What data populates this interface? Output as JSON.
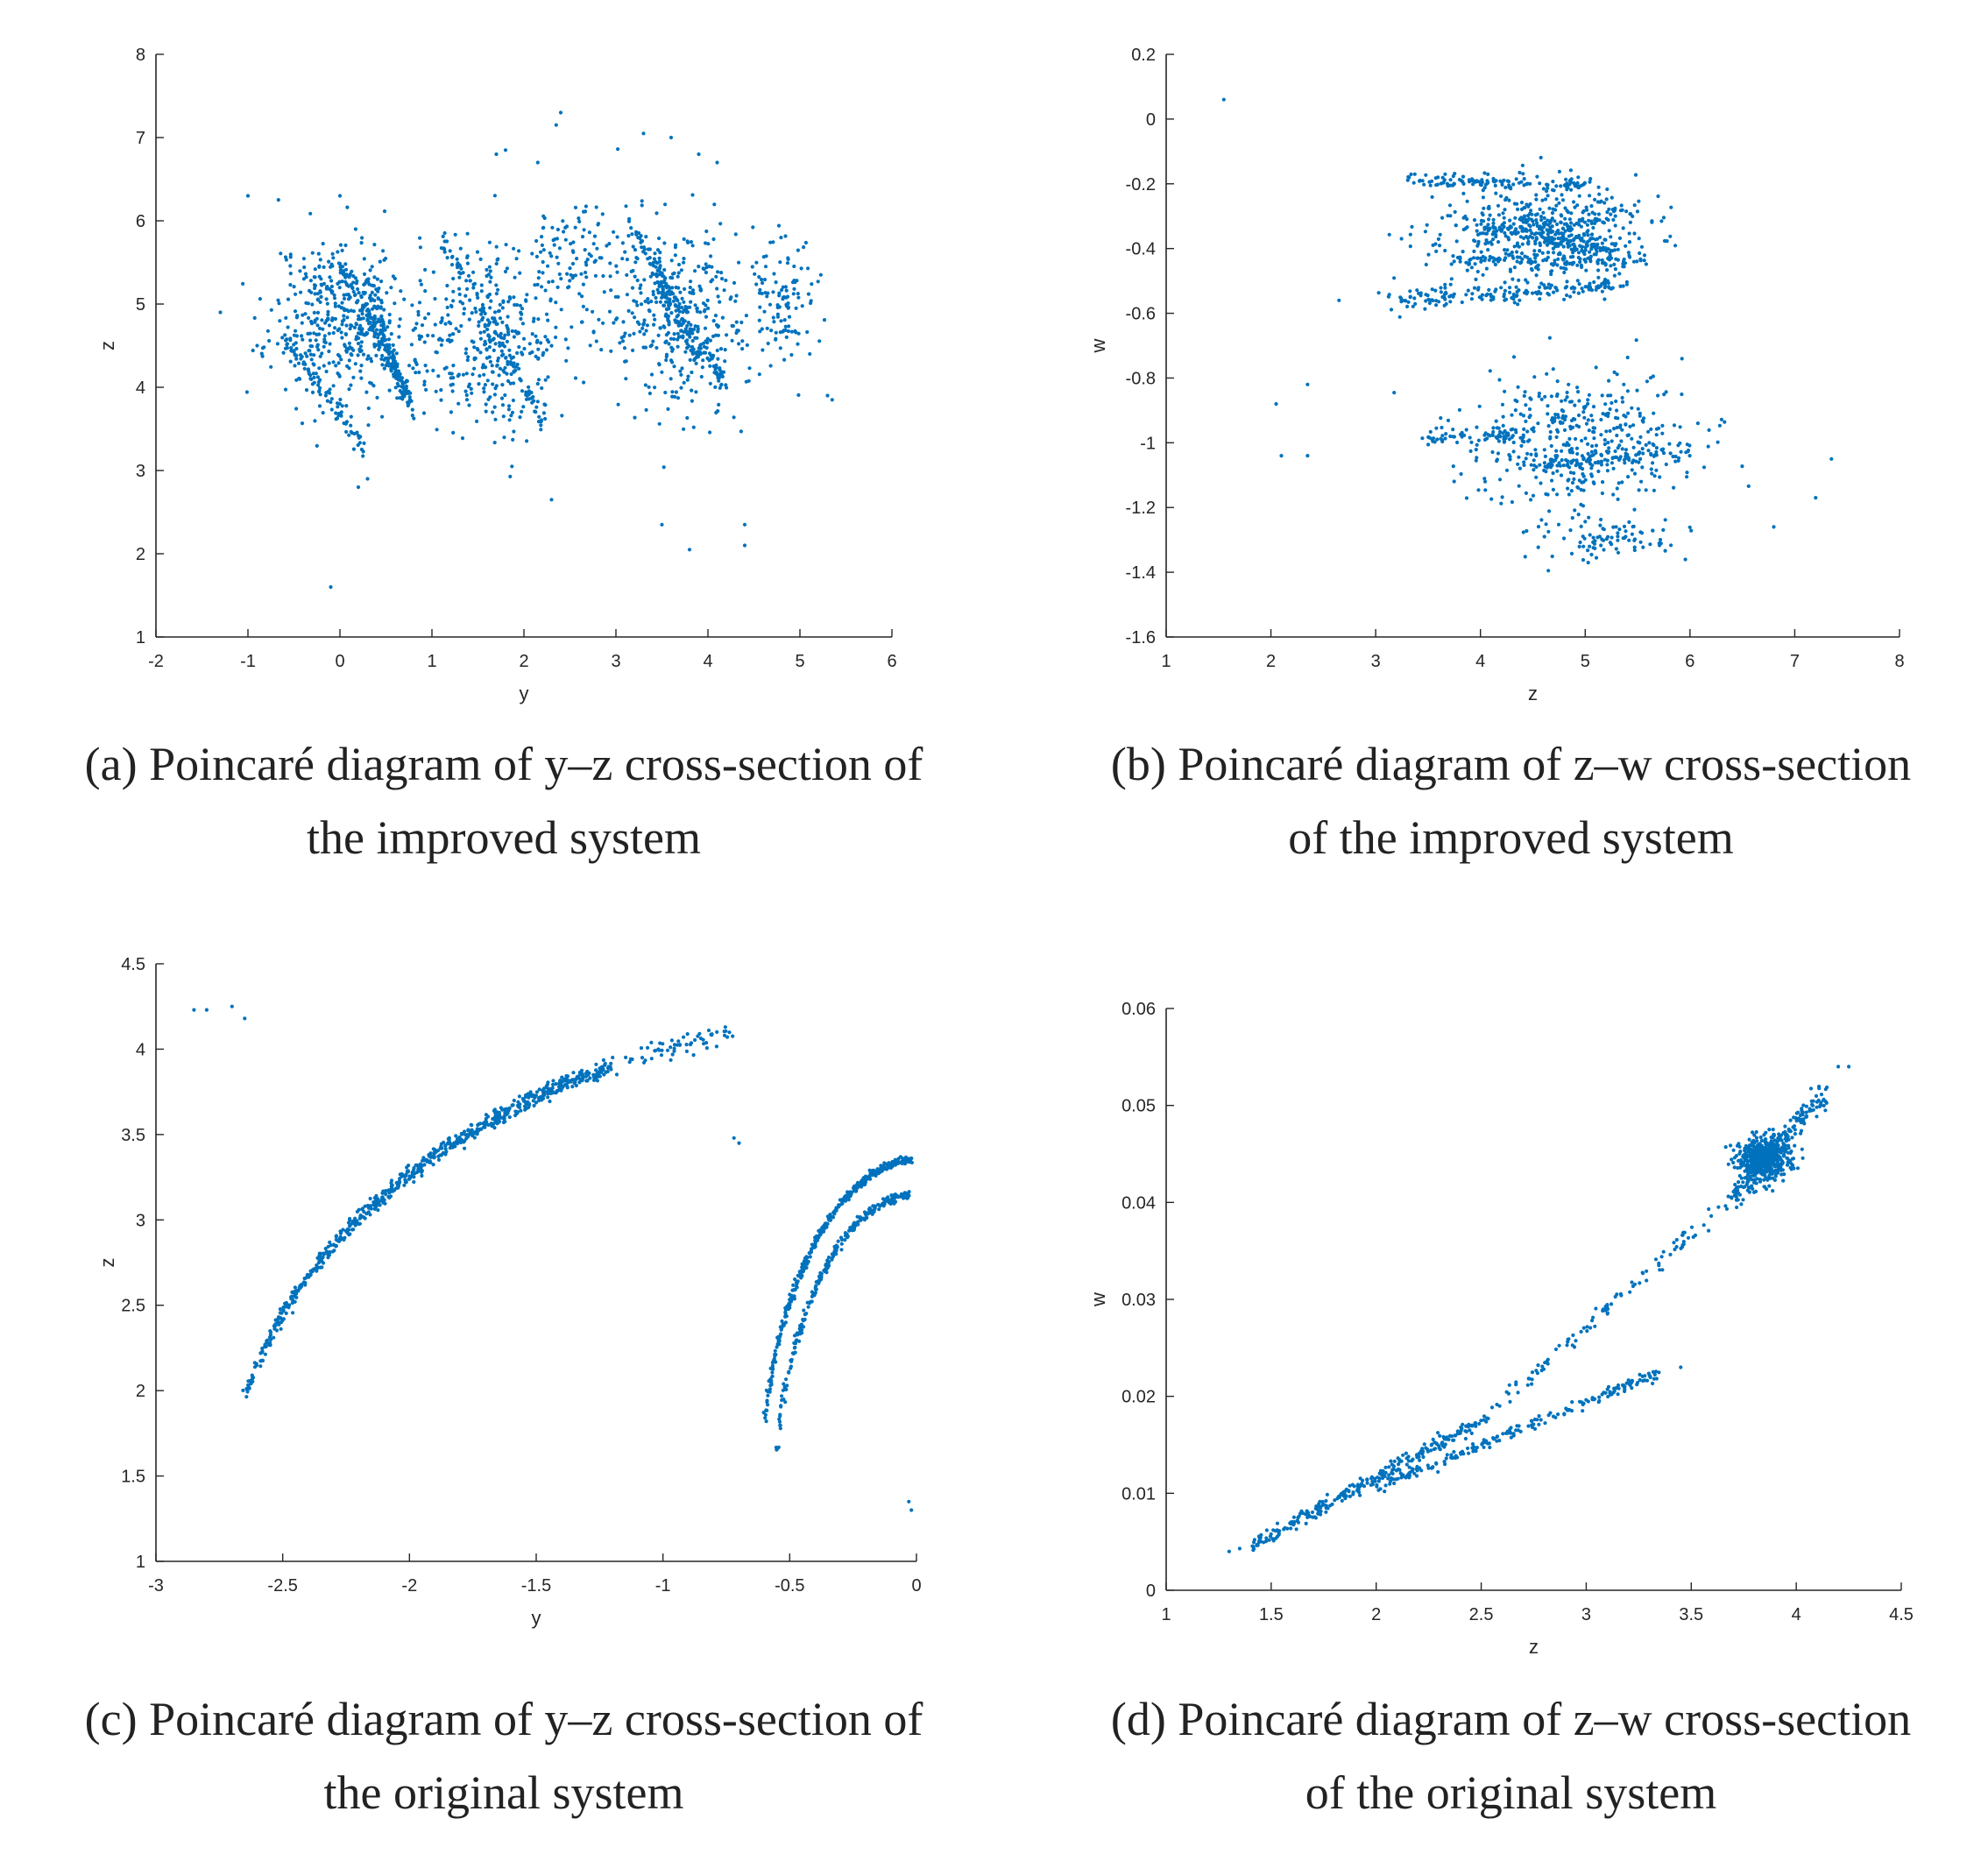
{
  "marker_color": "#0072BD",
  "axis_color": "#262626",
  "chart_data": [
    {
      "id": "a",
      "type": "scatter",
      "caption_lines": [
        "(a)  Poincaré diagram of y–z cross-section of",
        "the improved system"
      ],
      "xlabel": "y",
      "ylabel": "z",
      "xlim": [
        -2,
        6
      ],
      "ylim": [
        1,
        8
      ],
      "xticks": [
        -2,
        -1,
        0,
        1,
        2,
        3,
        4,
        5,
        6
      ],
      "yticks": [
        1,
        2,
        3,
        4,
        5,
        6,
        7,
        8
      ],
      "xtick_labels": [
        "-2",
        "-1",
        "0",
        "1",
        "2",
        "3",
        "4",
        "5",
        "6"
      ],
      "ytick_labels": [
        "1",
        "2",
        "3",
        "4",
        "5",
        "6",
        "7",
        "8"
      ],
      "grid": false,
      "points": [
        [
          -0.1,
          1.6
        ],
        [
          2.4,
          7.3
        ],
        [
          2.35,
          7.15
        ],
        [
          3.8,
          2.05
        ],
        [
          4.4,
          2.1
        ],
        [
          4.4,
          2.35
        ],
        [
          3.5,
          2.35
        ],
        [
          -1.3,
          4.9
        ],
        [
          -1.0,
          6.3
        ],
        [
          5.3,
          3.9
        ],
        [
          5.35,
          3.85
        ],
        [
          0.2,
          2.8
        ],
        [
          0.3,
          2.9
        ],
        [
          1.8,
          6.85
        ],
        [
          1.7,
          6.8
        ],
        [
          3.3,
          7.05
        ],
        [
          3.6,
          7.0
        ],
        [
          3.9,
          6.8
        ],
        [
          4.1,
          6.7
        ],
        [
          2.3,
          2.65
        ],
        [
          2.15,
          6.7
        ],
        [
          0.0,
          6.3
        ],
        [
          -0.9,
          4.5
        ]
      ],
      "clusters": [
        {
          "cx": 0.0,
          "cy": 4.8,
          "sx": 0.75,
          "sy": 1.0,
          "n": 420
        },
        {
          "cx": 1.6,
          "cy": 4.6,
          "sx": 0.75,
          "sy": 1.1,
          "n": 380
        },
        {
          "cx": 3.7,
          "cy": 4.8,
          "sx": 0.85,
          "sy": 1.1,
          "n": 380
        },
        {
          "cx": 2.6,
          "cy": 5.6,
          "sx": 0.5,
          "sy": 0.6,
          "n": 100
        },
        {
          "cx": 4.8,
          "cy": 5.0,
          "sx": 0.35,
          "sy": 0.8,
          "n": 110
        }
      ],
      "arcs": [
        {
          "x0": 0.0,
          "y0": 5.5,
          "x1": 0.8,
          "y1": 3.8,
          "n": 140,
          "w": 0.06
        },
        {
          "x0": 0.3,
          "y0": 5.3,
          "x1": 0.7,
          "y1": 3.8,
          "n": 90,
          "w": 0.06
        },
        {
          "x0": -0.6,
          "y0": 4.6,
          "x1": 0.3,
          "y1": 3.2,
          "n": 80,
          "w": 0.06
        },
        {
          "x0": 1.1,
          "y0": 5.8,
          "x1": 2.2,
          "y1": 3.6,
          "n": 90,
          "w": 0.07
        },
        {
          "x0": 3.2,
          "y0": 5.9,
          "x1": 4.2,
          "y1": 4.0,
          "n": 110,
          "w": 0.07
        },
        {
          "x0": 3.4,
          "y0": 5.4,
          "x1": 3.9,
          "y1": 4.3,
          "n": 60,
          "w": 0.05
        }
      ],
      "seed": 11
    },
    {
      "id": "b",
      "type": "scatter",
      "caption_lines": [
        "(b)  Poincaré diagram of z–w cross-section",
        "of the improved system"
      ],
      "xlabel": "z",
      "ylabel": "w",
      "xlim": [
        1,
        8
      ],
      "ylim": [
        -1.6,
        0.2
      ],
      "xticks": [
        1,
        2,
        3,
        4,
        5,
        6,
        7,
        8
      ],
      "yticks": [
        -1.6,
        -1.4,
        -1.2,
        -1,
        -0.8,
        -0.6,
        -0.4,
        -0.2,
        0,
        0.2
      ],
      "xtick_labels": [
        "1",
        "2",
        "3",
        "4",
        "5",
        "6",
        "7",
        "8"
      ],
      "ytick_labels": [
        "-1.6",
        "-1.4",
        "-1.2",
        "-1",
        "-0.8",
        "-0.6",
        "-0.4",
        "-0.2",
        "0",
        "0.2"
      ],
      "grid": false,
      "points": [
        [
          1.55,
          0.06
        ],
        [
          2.05,
          -0.88
        ],
        [
          2.1,
          -1.04
        ],
        [
          2.35,
          -0.82
        ],
        [
          2.35,
          -1.04
        ],
        [
          2.65,
          -0.56
        ],
        [
          7.35,
          -1.05
        ],
        [
          7.2,
          -1.17
        ],
        [
          6.8,
          -1.26
        ]
      ],
      "clusters": [
        {
          "cx": 4.6,
          "cy": -0.35,
          "sx": 1.0,
          "sy": 0.15,
          "n": 480
        },
        {
          "cx": 4.9,
          "cy": -1.0,
          "sx": 1.1,
          "sy": 0.2,
          "n": 430
        },
        {
          "cx": 5.3,
          "cy": -1.3,
          "sx": 0.7,
          "sy": 0.07,
          "n": 90
        },
        {
          "cx": 3.6,
          "cy": -0.55,
          "sx": 0.5,
          "sy": 0.05,
          "n": 70
        }
      ],
      "arcs": [
        {
          "x0": 3.3,
          "y0": -0.19,
          "x1": 5.0,
          "y1": -0.2,
          "n": 120,
          "w": 0.012
        },
        {
          "x0": 4.0,
          "y0": -0.33,
          "x1": 5.3,
          "y1": -0.4,
          "n": 140,
          "w": 0.012
        },
        {
          "x0": 3.7,
          "y0": -0.44,
          "x1": 5.6,
          "y1": -0.44,
          "n": 100,
          "w": 0.012
        },
        {
          "x0": 4.0,
          "y0": -0.55,
          "x1": 5.4,
          "y1": -0.51,
          "n": 100,
          "w": 0.012
        },
        {
          "x0": 3.5,
          "y0": -0.98,
          "x1": 4.5,
          "y1": -0.98,
          "n": 60,
          "w": 0.012
        },
        {
          "x0": 4.5,
          "y0": -1.07,
          "x1": 6.0,
          "y1": -1.02,
          "n": 80,
          "w": 0.012
        }
      ],
      "seed": 23
    },
    {
      "id": "c",
      "type": "scatter",
      "caption_lines": [
        "(c) Poincaré diagram of y–z cross-section of",
        "the original system"
      ],
      "xlabel": "y",
      "ylabel": "z",
      "xlim": [
        -3,
        0
      ],
      "ylim": [
        1,
        4.5
      ],
      "xticks": [
        -3,
        -2.5,
        -2,
        -1.5,
        -1,
        -0.5,
        0
      ],
      "yticks": [
        1,
        1.5,
        2,
        2.5,
        3,
        3.5,
        4,
        4.5
      ],
      "xtick_labels": [
        "-3",
        "-2.5",
        "-2",
        "-1.5",
        "-1",
        "-0.5",
        "0"
      ],
      "ytick_labels": [
        "1",
        "1.5",
        "2",
        "2.5",
        "3",
        "3.5",
        "4",
        "4.5"
      ],
      "grid": false,
      "points": [
        [
          -2.85,
          4.23
        ],
        [
          -2.8,
          4.23
        ],
        [
          -2.7,
          4.25
        ],
        [
          -2.65,
          4.18
        ],
        [
          -0.7,
          3.45
        ],
        [
          -0.72,
          3.48
        ],
        [
          -0.03,
          1.35
        ],
        [
          -0.02,
          1.3
        ]
      ],
      "clusters": [],
      "arcs": [],
      "curves": [
        {
          "kind": "ellipse",
          "a": 2.72,
          "b": 2.9,
          "cy": 1.3,
          "t0": -2.65,
          "t1": -1.2,
          "n": 700,
          "w": 0.025
        },
        {
          "kind": "ellipse",
          "a": 2.72,
          "b": 2.9,
          "cy": 1.3,
          "t0": -1.2,
          "t1": -0.72,
          "n": 60,
          "w": 0.03
        },
        {
          "kind": "ellipse",
          "a": 0.62,
          "b": 2.05,
          "cy": 1.3,
          "t0": -0.6,
          "t1": -0.02,
          "n": 420,
          "w": 0.012
        },
        {
          "kind": "ellipse",
          "a": 0.56,
          "b": 1.85,
          "cy": 1.3,
          "t0": -0.55,
          "t1": -0.03,
          "n": 260,
          "w": 0.012
        }
      ],
      "seed": 37
    },
    {
      "id": "d",
      "type": "scatter",
      "caption_lines": [
        "(d) Poincaré diagram of z–w cross-section",
        "of the original system"
      ],
      "xlabel": "z",
      "ylabel": "w",
      "xlim": [
        1,
        4.5
      ],
      "ylim": [
        0,
        0.06
      ],
      "xticks": [
        1,
        1.5,
        2,
        2.5,
        3,
        3.5,
        4,
        4.5
      ],
      "yticks": [
        0,
        0.01,
        0.02,
        0.03,
        0.04,
        0.05,
        0.06
      ],
      "xtick_labels": [
        "1",
        "1.5",
        "2",
        "2.5",
        "3",
        "3.5",
        "4",
        "4.5"
      ],
      "ytick_labels": [
        "0",
        "0.01",
        "0.02",
        "0.03",
        "0.04",
        "0.05",
        "0.06"
      ],
      "grid": false,
      "points": [
        [
          1.3,
          0.004
        ],
        [
          1.35,
          0.0043
        ],
        [
          4.2,
          0.054
        ],
        [
          4.25,
          0.054
        ],
        [
          3.45,
          0.023
        ]
      ],
      "clusters": [
        {
          "cx": 3.85,
          "cy": 0.0445,
          "sx": 0.13,
          "sy": 0.0022,
          "n": 520
        }
      ],
      "arcs": [
        {
          "x0": 1.4,
          "y0": 0.0045,
          "x1": 2.5,
          "y1": 0.0175,
          "n": 260,
          "w": 0.0004
        },
        {
          "x0": 2.5,
          "y0": 0.0175,
          "x1": 3.7,
          "y1": 0.0405,
          "n": 110,
          "w": 0.0005
        },
        {
          "x0": 3.7,
          "y0": 0.0405,
          "x1": 4.15,
          "y1": 0.0515,
          "n": 200,
          "w": 0.0008
        },
        {
          "x0": 2.0,
          "y0": 0.0105,
          "x1": 3.35,
          "y1": 0.0225,
          "n": 200,
          "w": 0.0003
        }
      ],
      "seed": 53
    }
  ]
}
